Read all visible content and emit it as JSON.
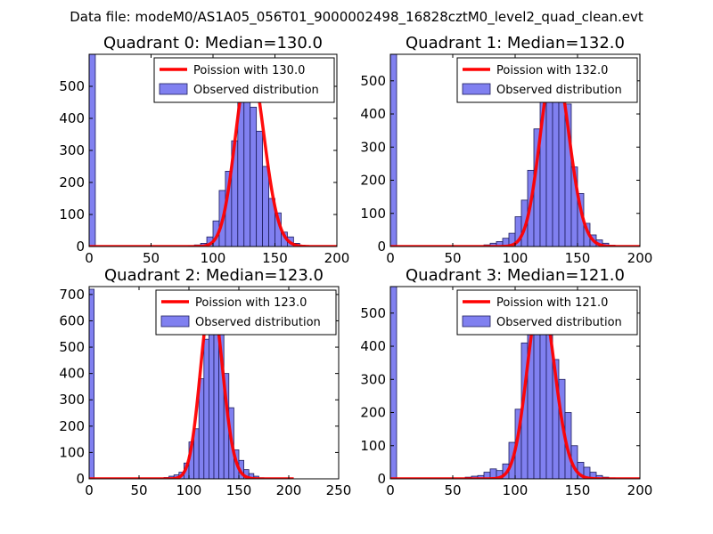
{
  "figure": {
    "suptitle": "Data file: modeM0/AS1A05_056T01_9000002498_16828cztM0_level2_quad_clean.evt"
  },
  "colors": {
    "bar_fill": "#8080f0",
    "bar_edge": "#1c1c5c",
    "fit_line": "#ff0000",
    "axis": "#000000"
  },
  "chart_data": [
    {
      "type": "bar",
      "title": "Quadrant 0: Median=130.0",
      "xlim": [
        0,
        200
      ],
      "ylim": [
        0,
        600
      ],
      "xticks": [
        0,
        50,
        100,
        150,
        200
      ],
      "yticks": [
        0,
        100,
        200,
        300,
        400,
        500
      ],
      "legend": {
        "position": "top-right",
        "fit_label": "Poission with 130.0",
        "hist_label": "Observed distribution"
      },
      "bin_width": 5,
      "bins": [
        {
          "x": 0,
          "count": 600
        },
        {
          "x": 80,
          "count": 2
        },
        {
          "x": 85,
          "count": 5
        },
        {
          "x": 90,
          "count": 10
        },
        {
          "x": 95,
          "count": 30
        },
        {
          "x": 100,
          "count": 80
        },
        {
          "x": 105,
          "count": 175
        },
        {
          "x": 110,
          "count": 235
        },
        {
          "x": 115,
          "count": 330
        },
        {
          "x": 120,
          "count": 470
        },
        {
          "x": 125,
          "count": 510
        },
        {
          "x": 130,
          "count": 435
        },
        {
          "x": 135,
          "count": 360
        },
        {
          "x": 140,
          "count": 250
        },
        {
          "x": 145,
          "count": 150
        },
        {
          "x": 150,
          "count": 105
        },
        {
          "x": 155,
          "count": 45
        },
        {
          "x": 160,
          "count": 30
        },
        {
          "x": 165,
          "count": 10
        },
        {
          "x": 170,
          "count": 3
        }
      ],
      "fit": {
        "label": "Poission with 130.0",
        "mean": 130.0,
        "peak": 575,
        "x_range": [
          0,
          200
        ]
      }
    },
    {
      "type": "bar",
      "title": "Quadrant 1: Median=132.0",
      "xlim": [
        0,
        200
      ],
      "ylim": [
        0,
        580
      ],
      "xticks": [
        0,
        50,
        100,
        150,
        200
      ],
      "yticks": [
        0,
        100,
        200,
        300,
        400,
        500
      ],
      "legend": {
        "position": "top-right",
        "fit_label": "Poission with 132.0",
        "hist_label": "Observed distribution"
      },
      "bin_width": 5,
      "bins": [
        {
          "x": 0,
          "count": 580
        },
        {
          "x": 75,
          "count": 5
        },
        {
          "x": 80,
          "count": 10
        },
        {
          "x": 85,
          "count": 15
        },
        {
          "x": 90,
          "count": 25
        },
        {
          "x": 95,
          "count": 40
        },
        {
          "x": 100,
          "count": 90
        },
        {
          "x": 105,
          "count": 140
        },
        {
          "x": 110,
          "count": 230
        },
        {
          "x": 115,
          "count": 355
        },
        {
          "x": 120,
          "count": 450
        },
        {
          "x": 125,
          "count": 490
        },
        {
          "x": 130,
          "count": 560
        },
        {
          "x": 135,
          "count": 460
        },
        {
          "x": 140,
          "count": 430
        },
        {
          "x": 145,
          "count": 240
        },
        {
          "x": 150,
          "count": 160
        },
        {
          "x": 155,
          "count": 70
        },
        {
          "x": 160,
          "count": 35
        },
        {
          "x": 165,
          "count": 20
        },
        {
          "x": 170,
          "count": 10
        },
        {
          "x": 175,
          "count": 4
        }
      ],
      "fit": {
        "label": "Poission with 132.0",
        "mean": 132.0,
        "peak": 555,
        "x_range": [
          0,
          200
        ]
      }
    },
    {
      "type": "bar",
      "title": "Quadrant 2: Median=123.0",
      "xlim": [
        0,
        250
      ],
      "ylim": [
        0,
        730
      ],
      "xticks": [
        0,
        50,
        100,
        150,
        200,
        250
      ],
      "yticks": [
        0,
        100,
        200,
        300,
        400,
        500,
        600,
        700
      ],
      "legend": {
        "position": "top-right",
        "fit_label": "Poission with 123.0",
        "hist_label": "Observed distribution"
      },
      "bin_width": 5,
      "bins": [
        {
          "x": 0,
          "count": 720
        },
        {
          "x": 75,
          "count": 5
        },
        {
          "x": 80,
          "count": 10
        },
        {
          "x": 85,
          "count": 15
        },
        {
          "x": 90,
          "count": 25
        },
        {
          "x": 95,
          "count": 60
        },
        {
          "x": 100,
          "count": 140
        },
        {
          "x": 105,
          "count": 190
        },
        {
          "x": 110,
          "count": 380
        },
        {
          "x": 115,
          "count": 530
        },
        {
          "x": 120,
          "count": 680
        },
        {
          "x": 125,
          "count": 670
        },
        {
          "x": 130,
          "count": 560
        },
        {
          "x": 135,
          "count": 400
        },
        {
          "x": 140,
          "count": 270
        },
        {
          "x": 145,
          "count": 110
        },
        {
          "x": 150,
          "count": 70
        },
        {
          "x": 155,
          "count": 35
        },
        {
          "x": 160,
          "count": 20
        },
        {
          "x": 165,
          "count": 10
        },
        {
          "x": 170,
          "count": 4
        }
      ],
      "fit": {
        "label": "Poission with 123.0",
        "mean": 123.0,
        "peak": 685,
        "x_range": [
          0,
          205
        ]
      }
    },
    {
      "type": "bar",
      "title": "Quadrant 3: Median=121.0",
      "xlim": [
        0,
        200
      ],
      "ylim": [
        0,
        580
      ],
      "xticks": [
        0,
        50,
        100,
        150,
        200
      ],
      "yticks": [
        0,
        100,
        200,
        300,
        400,
        500
      ],
      "legend": {
        "position": "top-right",
        "fit_label": "Poission with 121.0",
        "hist_label": "Observed distribution"
      },
      "bin_width": 5,
      "bins": [
        {
          "x": 0,
          "count": 580
        },
        {
          "x": 60,
          "count": 5
        },
        {
          "x": 65,
          "count": 8
        },
        {
          "x": 70,
          "count": 10
        },
        {
          "x": 75,
          "count": 20
        },
        {
          "x": 80,
          "count": 30
        },
        {
          "x": 85,
          "count": 25
        },
        {
          "x": 90,
          "count": 45
        },
        {
          "x": 95,
          "count": 110
        },
        {
          "x": 100,
          "count": 210
        },
        {
          "x": 105,
          "count": 410
        },
        {
          "x": 110,
          "count": 480
        },
        {
          "x": 115,
          "count": 560
        },
        {
          "x": 120,
          "count": 555
        },
        {
          "x": 125,
          "count": 510
        },
        {
          "x": 130,
          "count": 360
        },
        {
          "x": 135,
          "count": 300
        },
        {
          "x": 140,
          "count": 200
        },
        {
          "x": 145,
          "count": 100
        },
        {
          "x": 150,
          "count": 50
        },
        {
          "x": 155,
          "count": 35
        },
        {
          "x": 160,
          "count": 20
        },
        {
          "x": 165,
          "count": 10
        },
        {
          "x": 170,
          "count": 5
        },
        {
          "x": 175,
          "count": 3
        }
      ],
      "fit": {
        "label": "Poission with 121.0",
        "mean": 121.0,
        "peak": 550,
        "x_range": [
          0,
          200
        ]
      }
    }
  ]
}
